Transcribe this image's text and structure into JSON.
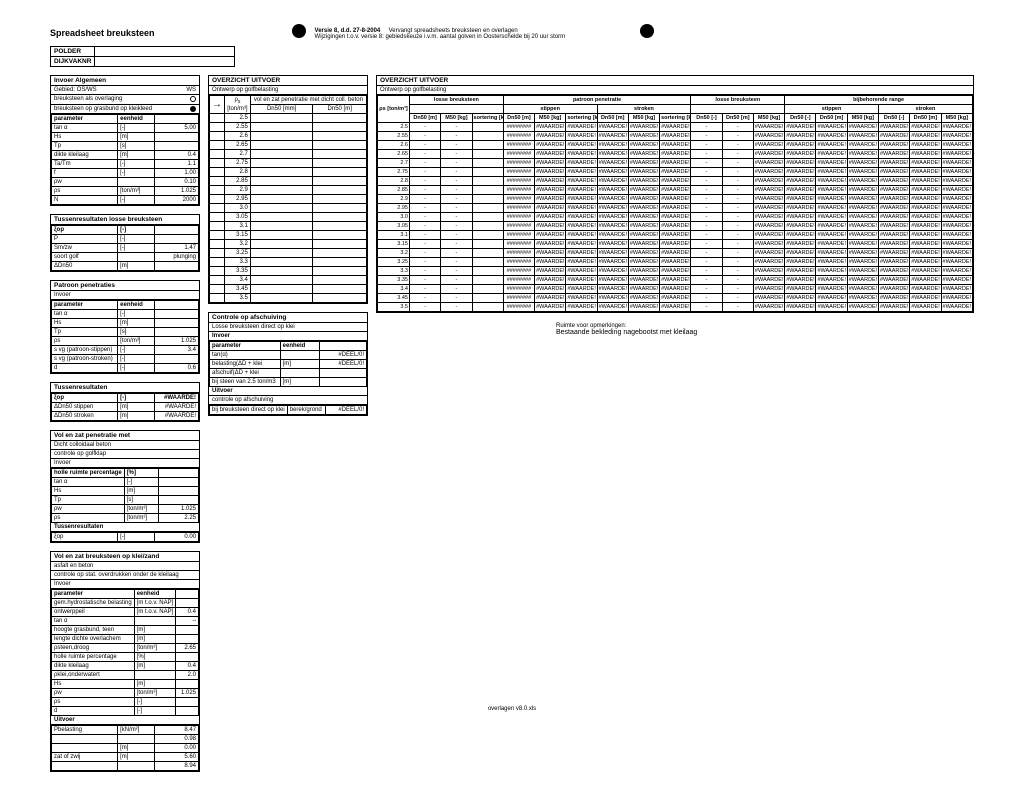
{
  "doc": {
    "title": "Spreadsheet breuksteen",
    "version": "Versie 8, d.d. 27-8-2004",
    "version_note1": "Vervangt spreadsheets breuksteen en overlagen",
    "version_note2": "Wijzigingen t.o.v. versie 8: gebiedskeuze i.v.m. aantal golven in Oosterschelde bij 20 uur storm",
    "footer": "overlagen v8.0.xls"
  },
  "meta": {
    "rows": [
      {
        "label": "POLDER",
        "value": ""
      },
      {
        "label": "DIJKVAKNR",
        "value": ""
      }
    ]
  },
  "left_boxes": [
    {
      "title": "Invoer Algemeen",
      "subs": [
        {
          "text": "Gebied: OS/WS",
          "right": "WS"
        },
        {
          "text": "breuksteen als overlaging",
          "marker": "circle"
        },
        {
          "text": "breuksteen op grasbund op kleikleed",
          "marker": "filled"
        }
      ],
      "params": [
        [
          "parameter",
          "eenheid",
          ""
        ],
        [
          "tan α",
          "[-]",
          "5.00"
        ],
        [
          "Hs",
          "[m]",
          ""
        ],
        [
          "Tp",
          "[s]",
          ""
        ],
        [
          "dikte kleilaag",
          "[m]",
          "0.4"
        ],
        [
          "Ta/Tm",
          "[-]",
          "1.1"
        ],
        [
          "f",
          "[-]",
          "1.00"
        ],
        [
          "ρw",
          "",
          "0.10"
        ],
        [
          "ρs",
          "[ton/m³]",
          "1.025"
        ],
        [
          "N",
          "[-]",
          "2000"
        ]
      ]
    },
    {
      "title": "Tussenresultaten losse breuksteen",
      "params": [
        [
          "ξop",
          "[-]",
          ""
        ],
        [
          "P",
          "[-]",
          ""
        ],
        [
          "Sm/zw",
          "[-]",
          "1.47"
        ],
        [
          "soort golf",
          "",
          "plunging"
        ],
        [
          "ΔDn50",
          "[m]",
          ""
        ]
      ]
    },
    {
      "title": "Patroon penetraties",
      "subs": [
        {
          "text": "Invoer"
        }
      ],
      "params": [
        [
          "parameter",
          "eenheid",
          ""
        ],
        [
          "tan α",
          "[-]",
          ""
        ],
        [
          "Hs",
          "[m]",
          ""
        ],
        [
          "Tp",
          "[s]",
          ""
        ],
        [
          "ρs",
          "[ton/m³]",
          "1.025"
        ],
        [
          "s vg (patroon-stippen)",
          "[-]",
          "3.4"
        ],
        [
          "s vg (patroon-stroken)",
          "[-]",
          ""
        ],
        [
          "d",
          "[-]",
          "0.6"
        ]
      ]
    },
    {
      "title": "Tussenresultaten",
      "params": [
        [
          "ξop",
          "[-]",
          "#WAARDE!"
        ],
        [
          "ΔDn50 stippen",
          "[m]",
          "#WAARDE!"
        ],
        [
          "ΔDn50 stroken",
          "[m]",
          "#WAARDE!"
        ]
      ]
    },
    {
      "title": "Vol en zat penetratie met",
      "subs": [
        {
          "text": "Dicht colloidaal beton"
        },
        {
          "text": "controle op golfklap"
        },
        {
          "text": "Invoer"
        }
      ],
      "params": [
        [
          "holle ruimte percentage",
          "[%]",
          ""
        ],
        [
          "tan α",
          "[-]",
          ""
        ],
        [
          "Hs",
          "[m]",
          ""
        ],
        [
          "Tp",
          "[s]",
          ""
        ],
        [
          "ρw",
          "[ton/m³]",
          "1.025"
        ],
        [
          "ρs",
          "[ton/m³]",
          "2.25"
        ]
      ],
      "tail_title": "Tussenresultaten",
      "tail": [
        [
          "ξop",
          "[-]",
          "0.00"
        ]
      ]
    },
    {
      "title": "Vol en zat breuksteen op klei/zand",
      "subs": [
        {
          "text": "asfalt en beton"
        },
        {
          "text": "controle op stat. overdrukken onder de kleilaag"
        },
        {
          "text": "Invoer"
        }
      ],
      "params": [
        [
          "parameter",
          "eenheid",
          ""
        ],
        [
          "gem.hydrostatische belasting",
          "[m t.o.v. NAP]",
          ""
        ],
        [
          "ontwerppeil",
          "[m t.o.v. NAP]",
          "0.4"
        ],
        [
          "tan α",
          "",
          "–"
        ],
        [
          "hoogte grasbund, teen",
          "[m]",
          ""
        ],
        [
          "lengte dichte overlachem",
          "[m]",
          ""
        ],
        [
          "ρsteen,droog",
          "[ton/m³]",
          "2.65"
        ],
        [
          "holle ruimte percentage",
          "[%]",
          ""
        ],
        [
          "dikte kleilaag",
          "[m]",
          "0.4"
        ],
        [
          "ρklei,onderwatert",
          "",
          "2.0"
        ],
        [
          "Hs",
          "[m]",
          ""
        ],
        [
          "ρw",
          "[ton/m³]",
          "1.025"
        ],
        [
          "ρs",
          "[-]",
          ""
        ],
        [
          "d",
          "[-]",
          ""
        ]
      ],
      "tail_title": "Uitvoer",
      "tail": [
        [
          "Pbelasting",
          "[kN/m²]",
          "8.47"
        ],
        [
          "",
          "",
          "0.98"
        ],
        [
          "",
          "[m]",
          "0.00"
        ],
        [
          "zat of zwij",
          "[m]",
          "5.60"
        ],
        [
          "",
          "",
          "8.94"
        ]
      ]
    }
  ],
  "mid_boxes": [
    {
      "title": "OVERZICHT UITVOER",
      "sub": "Ontwerp op golfbelasting",
      "header": [
        "→",
        "ρs",
        "[ton/m³]",
        "vol en zat penetratie met dicht coll. beton",
        "Dn50 [mm]",
        "Dn50 [m]"
      ],
      "rows": [
        "2.5",
        "2.55",
        "2.6",
        "2.65",
        "2.7",
        "2.75",
        "2.8",
        "2.85",
        "2.9",
        "2.95",
        "3.0",
        "3.05",
        "3.1",
        "3.15",
        "3.2",
        "3.25",
        "3.3",
        "3.35",
        "3.4",
        "3.45",
        "3.5"
      ]
    },
    {
      "title": "Controle op afschuiving",
      "sub": "Losse breuksteen direct op klei",
      "subtitle": "Invoer",
      "params": [
        [
          "parameter",
          "eenheid",
          ""
        ],
        [
          "tan(α)",
          "",
          "#DEEL/0!"
        ],
        [
          "belasting(ΔD + klei",
          "[m]",
          "#DEEL/0!"
        ],
        [
          "afschuif(ΔD + klei",
          "",
          ""
        ],
        [
          "bij steen van 2.5 ton/m3",
          "[m]",
          ""
        ]
      ],
      "tail_title": "Uitvoer",
      "tail_sub": "controle op afschuiving",
      "tail": [
        [
          "bij breuksteen direct op klei",
          "berek/grond",
          "#DEEL/0!"
        ]
      ]
    }
  ],
  "big": {
    "title": "OVERZICHT UITVOER",
    "sub": "Ontwerp op golfbelasting",
    "group_row": [
      "",
      "losse breuksteen",
      "patroon penetratie",
      "",
      "bijbehorende range",
      ""
    ],
    "sub_group_row": [
      "",
      "",
      "stippen",
      "stroken",
      "losse breuksteen",
      "stippen",
      "stroken"
    ],
    "cols": [
      "ρs [ton/m³]",
      "Dn50 [m]",
      "M50 [kg]",
      "sortering [kg]",
      "Dn50 [m]",
      "M50 [kg]",
      "sortering [kg]",
      "Dn50 [m]",
      "M50 [kg]",
      "sortering [kg]",
      "Dn50 [-]",
      "Dn50 [m]",
      "M50 [kg]",
      "Dn50 [-]",
      "Dn50 [m]",
      "M50 [kg]",
      "Dn50 [-]",
      "Dn50 [m]",
      "M50 [kg]"
    ],
    "row_heads": [
      "2.5",
      "2.55",
      "2.6",
      "2.65",
      "2.7",
      "2.75",
      "2.8",
      "2.85",
      "2.9",
      "2.95",
      "3.0",
      "3.05",
      "3.1",
      "3.15",
      "3.2",
      "3.25",
      "3.3",
      "3.35",
      "3.4",
      "3.45",
      "3.5"
    ],
    "cell": "#WAARDE!",
    "hash": "########"
  },
  "note": {
    "head": "Ruimte voor opmerkingen:",
    "text": "Bestaande bekleding nagebootst met kleilaag"
  }
}
